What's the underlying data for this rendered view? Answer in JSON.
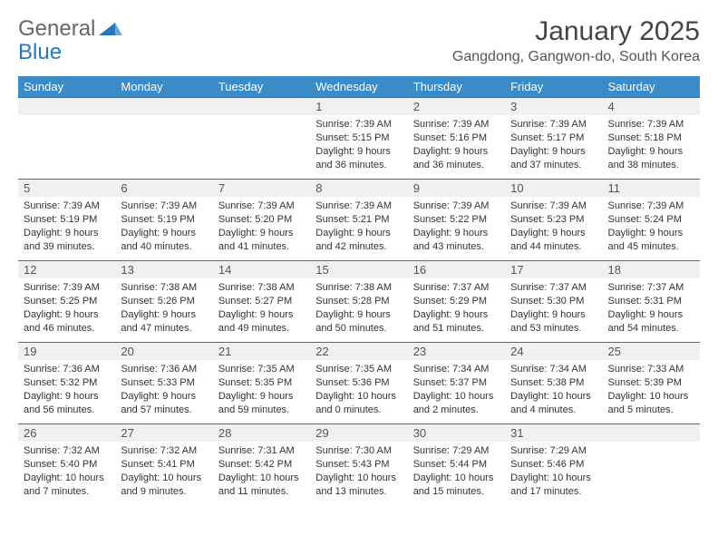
{
  "logo": {
    "part1": "General",
    "part2": "Blue"
  },
  "header": {
    "title": "January 2025",
    "location": "Gangdong, Gangwon-do, South Korea"
  },
  "colors": {
    "header_bg": "#3b8bc9",
    "header_text": "#ffffff",
    "daynum_bg": "#eef0f2",
    "accent": "#2976b9"
  },
  "calendar": {
    "daynames": [
      "Sunday",
      "Monday",
      "Tuesday",
      "Wednesday",
      "Thursday",
      "Friday",
      "Saturday"
    ],
    "weeks": [
      [
        {
          "n": "",
          "sr": "",
          "ss": "",
          "dl": ""
        },
        {
          "n": "",
          "sr": "",
          "ss": "",
          "dl": ""
        },
        {
          "n": "",
          "sr": "",
          "ss": "",
          "dl": ""
        },
        {
          "n": "1",
          "sr": "Sunrise: 7:39 AM",
          "ss": "Sunset: 5:15 PM",
          "dl": "Daylight: 9 hours and 36 minutes."
        },
        {
          "n": "2",
          "sr": "Sunrise: 7:39 AM",
          "ss": "Sunset: 5:16 PM",
          "dl": "Daylight: 9 hours and 36 minutes."
        },
        {
          "n": "3",
          "sr": "Sunrise: 7:39 AM",
          "ss": "Sunset: 5:17 PM",
          "dl": "Daylight: 9 hours and 37 minutes."
        },
        {
          "n": "4",
          "sr": "Sunrise: 7:39 AM",
          "ss": "Sunset: 5:18 PM",
          "dl": "Daylight: 9 hours and 38 minutes."
        }
      ],
      [
        {
          "n": "5",
          "sr": "Sunrise: 7:39 AM",
          "ss": "Sunset: 5:19 PM",
          "dl": "Daylight: 9 hours and 39 minutes."
        },
        {
          "n": "6",
          "sr": "Sunrise: 7:39 AM",
          "ss": "Sunset: 5:19 PM",
          "dl": "Daylight: 9 hours and 40 minutes."
        },
        {
          "n": "7",
          "sr": "Sunrise: 7:39 AM",
          "ss": "Sunset: 5:20 PM",
          "dl": "Daylight: 9 hours and 41 minutes."
        },
        {
          "n": "8",
          "sr": "Sunrise: 7:39 AM",
          "ss": "Sunset: 5:21 PM",
          "dl": "Daylight: 9 hours and 42 minutes."
        },
        {
          "n": "9",
          "sr": "Sunrise: 7:39 AM",
          "ss": "Sunset: 5:22 PM",
          "dl": "Daylight: 9 hours and 43 minutes."
        },
        {
          "n": "10",
          "sr": "Sunrise: 7:39 AM",
          "ss": "Sunset: 5:23 PM",
          "dl": "Daylight: 9 hours and 44 minutes."
        },
        {
          "n": "11",
          "sr": "Sunrise: 7:39 AM",
          "ss": "Sunset: 5:24 PM",
          "dl": "Daylight: 9 hours and 45 minutes."
        }
      ],
      [
        {
          "n": "12",
          "sr": "Sunrise: 7:39 AM",
          "ss": "Sunset: 5:25 PM",
          "dl": "Daylight: 9 hours and 46 minutes."
        },
        {
          "n": "13",
          "sr": "Sunrise: 7:38 AM",
          "ss": "Sunset: 5:26 PM",
          "dl": "Daylight: 9 hours and 47 minutes."
        },
        {
          "n": "14",
          "sr": "Sunrise: 7:38 AM",
          "ss": "Sunset: 5:27 PM",
          "dl": "Daylight: 9 hours and 49 minutes."
        },
        {
          "n": "15",
          "sr": "Sunrise: 7:38 AM",
          "ss": "Sunset: 5:28 PM",
          "dl": "Daylight: 9 hours and 50 minutes."
        },
        {
          "n": "16",
          "sr": "Sunrise: 7:37 AM",
          "ss": "Sunset: 5:29 PM",
          "dl": "Daylight: 9 hours and 51 minutes."
        },
        {
          "n": "17",
          "sr": "Sunrise: 7:37 AM",
          "ss": "Sunset: 5:30 PM",
          "dl": "Daylight: 9 hours and 53 minutes."
        },
        {
          "n": "18",
          "sr": "Sunrise: 7:37 AM",
          "ss": "Sunset: 5:31 PM",
          "dl": "Daylight: 9 hours and 54 minutes."
        }
      ],
      [
        {
          "n": "19",
          "sr": "Sunrise: 7:36 AM",
          "ss": "Sunset: 5:32 PM",
          "dl": "Daylight: 9 hours and 56 minutes."
        },
        {
          "n": "20",
          "sr": "Sunrise: 7:36 AM",
          "ss": "Sunset: 5:33 PM",
          "dl": "Daylight: 9 hours and 57 minutes."
        },
        {
          "n": "21",
          "sr": "Sunrise: 7:35 AM",
          "ss": "Sunset: 5:35 PM",
          "dl": "Daylight: 9 hours and 59 minutes."
        },
        {
          "n": "22",
          "sr": "Sunrise: 7:35 AM",
          "ss": "Sunset: 5:36 PM",
          "dl": "Daylight: 10 hours and 0 minutes."
        },
        {
          "n": "23",
          "sr": "Sunrise: 7:34 AM",
          "ss": "Sunset: 5:37 PM",
          "dl": "Daylight: 10 hours and 2 minutes."
        },
        {
          "n": "24",
          "sr": "Sunrise: 7:34 AM",
          "ss": "Sunset: 5:38 PM",
          "dl": "Daylight: 10 hours and 4 minutes."
        },
        {
          "n": "25",
          "sr": "Sunrise: 7:33 AM",
          "ss": "Sunset: 5:39 PM",
          "dl": "Daylight: 10 hours and 5 minutes."
        }
      ],
      [
        {
          "n": "26",
          "sr": "Sunrise: 7:32 AM",
          "ss": "Sunset: 5:40 PM",
          "dl": "Daylight: 10 hours and 7 minutes."
        },
        {
          "n": "27",
          "sr": "Sunrise: 7:32 AM",
          "ss": "Sunset: 5:41 PM",
          "dl": "Daylight: 10 hours and 9 minutes."
        },
        {
          "n": "28",
          "sr": "Sunrise: 7:31 AM",
          "ss": "Sunset: 5:42 PM",
          "dl": "Daylight: 10 hours and 11 minutes."
        },
        {
          "n": "29",
          "sr": "Sunrise: 7:30 AM",
          "ss": "Sunset: 5:43 PM",
          "dl": "Daylight: 10 hours and 13 minutes."
        },
        {
          "n": "30",
          "sr": "Sunrise: 7:29 AM",
          "ss": "Sunset: 5:44 PM",
          "dl": "Daylight: 10 hours and 15 minutes."
        },
        {
          "n": "31",
          "sr": "Sunrise: 7:29 AM",
          "ss": "Sunset: 5:46 PM",
          "dl": "Daylight: 10 hours and 17 minutes."
        },
        {
          "n": "",
          "sr": "",
          "ss": "",
          "dl": ""
        }
      ]
    ]
  }
}
